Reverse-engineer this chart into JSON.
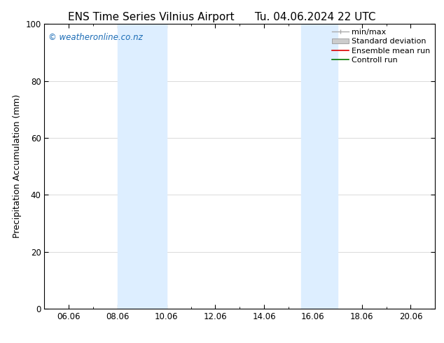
{
  "title_left": "ENS Time Series Vilnius Airport",
  "title_right": "Tu. 04.06.2024 22 UTC",
  "ylabel": "Precipitation Accumulation (mm)",
  "ylim": [
    0,
    100
  ],
  "yticks": [
    0,
    20,
    40,
    60,
    80,
    100
  ],
  "xtick_labels": [
    "06.06",
    "08.06",
    "10.06",
    "12.06",
    "14.06",
    "16.06",
    "18.06",
    "20.06"
  ],
  "xtick_positions": [
    6,
    8,
    10,
    12,
    14,
    16,
    18,
    20
  ],
  "xlim": [
    5.0,
    21.0
  ],
  "shade_regions": [
    {
      "xmin": 8.0,
      "xmax": 10.0,
      "color": "#ddeeff"
    },
    {
      "xmin": 15.5,
      "xmax": 17.0,
      "color": "#ddeeff"
    }
  ],
  "watermark_text": "© weatheronline.co.nz",
  "watermark_color": "#1a6bb5",
  "watermark_fontsize": 8.5,
  "background_color": "#ffffff",
  "legend_entries": [
    {
      "label": "min/max",
      "color": "#aaaaaa",
      "type": "errorbar"
    },
    {
      "label": "Standard deviation",
      "color": "#cccccc",
      "type": "band"
    },
    {
      "label": "Ensemble mean run",
      "color": "#dd0000",
      "type": "line"
    },
    {
      "label": "Controll run",
      "color": "#007700",
      "type": "line"
    }
  ],
  "title_fontsize": 11,
  "tick_fontsize": 8.5,
  "label_fontsize": 9,
  "legend_fontsize": 8
}
